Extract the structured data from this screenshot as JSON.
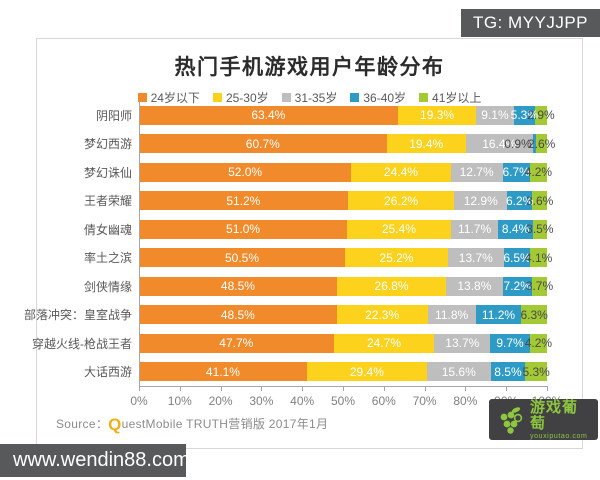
{
  "watermark_top": {
    "text": "TG: MYYJJPP"
  },
  "watermark_bottom": {
    "text": "www.wendin88.com"
  },
  "logo": {
    "name": "游戏葡萄",
    "domain": "youxiputao.com"
  },
  "source": {
    "prefix": "Source：",
    "q": "Q",
    "rest": "uestMobile TRUTH营销版 2017年1月"
  },
  "chart_data": {
    "type": "bar",
    "stacked": true,
    "orientation": "horizontal",
    "title": "热门手机游戏用户年龄分布",
    "legend_position": "top",
    "value_suffix": "%",
    "xlim": [
      0,
      100
    ],
    "x_ticks": [
      "0%",
      "10%",
      "20%",
      "30%",
      "40%",
      "50%",
      "60%",
      "70%",
      "80%",
      "90%",
      "100%"
    ],
    "categories": [
      "阴阳师",
      "梦幻西游",
      "梦幻诛仙",
      "王者荣耀",
      "倩女幽魂",
      "率土之滨",
      "剑侠情缘",
      "部落冲突：皇室战争",
      "穿越火线-枪战王者",
      "大话西游"
    ],
    "series": [
      {
        "name": "24岁以下",
        "color": "#f18a2a",
        "values": [
          63.4,
          60.7,
          52.0,
          51.2,
          51.0,
          50.5,
          48.5,
          48.5,
          47.7,
          41.1
        ]
      },
      {
        "name": "25-30岁",
        "color": "#fcd21c",
        "values": [
          19.3,
          19.4,
          24.4,
          26.2,
          25.4,
          25.2,
          26.8,
          22.3,
          24.7,
          29.4
        ]
      },
      {
        "name": "31-35岁",
        "color": "#bebebe",
        "values": [
          9.1,
          16.4,
          12.7,
          12.9,
          11.7,
          13.7,
          13.8,
          11.8,
          13.7,
          15.6
        ]
      },
      {
        "name": "36-40岁",
        "color": "#2e9bc6",
        "values": [
          5.3,
          0.9,
          6.7,
          6.2,
          8.4,
          6.5,
          7.2,
          11.2,
          9.7,
          8.5
        ]
      },
      {
        "name": "41岁以上",
        "color": "#a3c934",
        "values": [
          2.9,
          2.6,
          4.2,
          3.6,
          3.5,
          4.1,
          3.7,
          6.3,
          4.2,
          5.3
        ]
      }
    ]
  }
}
